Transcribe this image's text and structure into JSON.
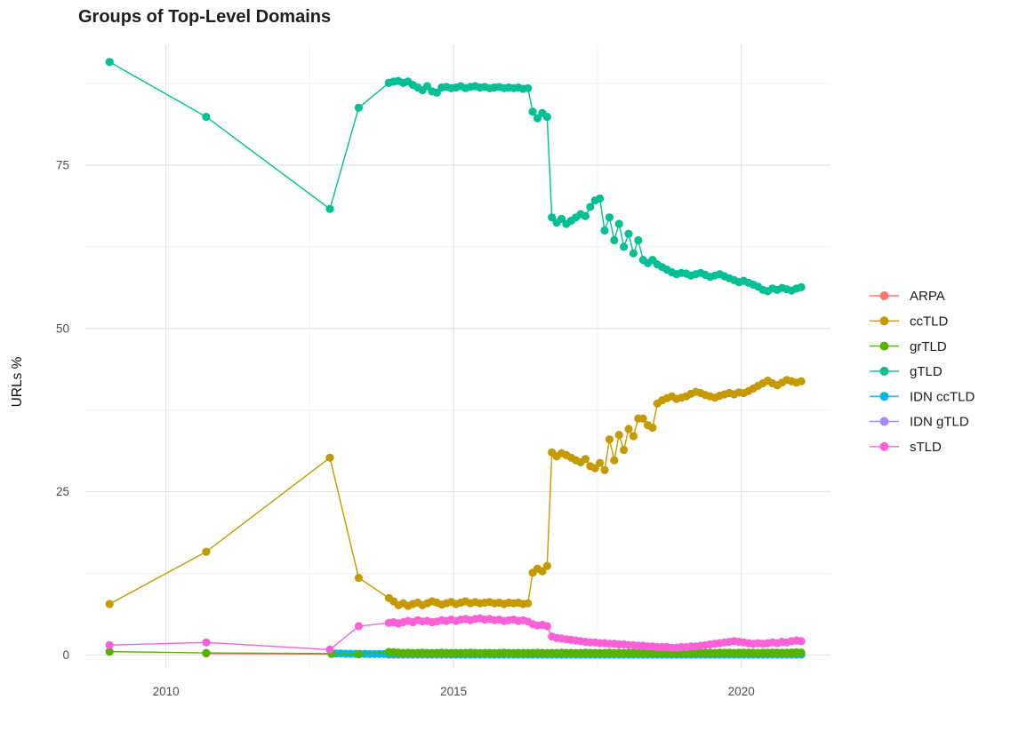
{
  "page": {
    "background": "#FFFFFF"
  },
  "chart_data": {
    "type": "line",
    "title": "Groups of Top-Level Domains",
    "xlabel": "",
    "ylabel": "URLs %",
    "xlim": [
      2008.6,
      2021.55
    ],
    "ylim": [
      -2,
      93.5
    ],
    "x_ticks": [
      {
        "v": 2010,
        "label": "2010"
      },
      {
        "v": 2015,
        "label": "2015"
      },
      {
        "v": 2020,
        "label": "2020"
      }
    ],
    "x_minor": [
      2012.5,
      2017.5
    ],
    "y_ticks": [
      {
        "v": 0,
        "label": "0"
      },
      {
        "v": 25,
        "label": "25"
      },
      {
        "v": 50,
        "label": "50"
      },
      {
        "v": 75,
        "label": "75"
      }
    ],
    "y_minor": [
      12.5,
      37.5,
      62.5,
      87.5
    ],
    "grid": {
      "major_color": "#E3E3E3",
      "minor_color": "#F0F0F0",
      "on": true
    },
    "legend": {
      "position": "right"
    },
    "axis_text_color": "#4D4D4D",
    "series": [
      {
        "name": "ARPA",
        "color": "#F8766D",
        "z": 0,
        "sparse_x": [
          2010.7,
          2012.88,
          2013.35
        ],
        "sparse_y": [
          0.2,
          0.12,
          0.08
        ],
        "dense": {
          "x0": 2013.875,
          "dx": 0.083333,
          "n": 87,
          "v": 0.04
        }
      },
      {
        "name": "ccTLD",
        "color": "#C49A00",
        "z": 4,
        "sparse_x": [
          2009.02,
          2010.7,
          2012.85,
          2013.35
        ],
        "sparse_y": [
          7.8,
          15.8,
          30.2,
          11.8
        ],
        "dense": {
          "x0": 2013.875,
          "dx": 0.083333,
          "y": [
            8.7,
            8.2,
            7.6,
            7.9,
            7.5,
            7.8,
            8.0,
            7.6,
            7.9,
            8.2,
            8.0,
            7.7,
            7.9,
            8.1,
            7.8,
            8.0,
            8.2,
            7.9,
            8.1,
            7.9,
            8.0,
            8.1,
            7.9,
            8.0,
            7.8,
            8.0,
            7.9,
            8.0,
            7.8,
            7.9,
            12.6,
            13.2,
            12.8,
            13.6,
            31.0,
            30.4,
            30.9,
            30.6,
            30.2,
            29.8,
            29.5,
            30.0,
            28.9,
            28.6,
            29.4,
            28.3,
            33.0,
            29.8,
            33.7,
            31.4,
            34.6,
            33.5,
            36.2,
            36.2,
            35.2,
            34.8,
            38.5,
            39.0,
            39.3,
            39.6,
            39.2,
            39.4,
            39.6,
            40.0,
            40.3,
            40.1,
            39.8,
            39.6,
            39.4,
            39.7,
            39.9,
            40.1,
            39.9,
            40.2,
            40.1,
            40.4,
            40.8,
            41.2,
            41.6,
            42.0,
            41.6,
            41.3,
            41.7,
            42.1,
            41.9,
            41.7,
            41.9
          ]
        }
      },
      {
        "name": "grTLD",
        "color": "#53B400",
        "z": 3,
        "sparse_x": [
          2009.02,
          2010.7,
          2012.88,
          2013.35
        ],
        "sparse_y": [
          0.5,
          0.3,
          0.2,
          0.12
        ],
        "dense": {
          "x0": 2013.875,
          "dx": 0.083333,
          "y": [
            0.45,
            0.4,
            0.35,
            0.3,
            0.32,
            0.28,
            0.3,
            0.33,
            0.3,
            0.28,
            0.3,
            0.32,
            0.3,
            0.28,
            0.3,
            0.28,
            0.3,
            0.32,
            0.3,
            0.28,
            0.3,
            0.3,
            0.28,
            0.3,
            0.32,
            0.3,
            0.28,
            0.3,
            0.3,
            0.28,
            0.3,
            0.32,
            0.3,
            0.28,
            0.3,
            0.3,
            0.32,
            0.3,
            0.3,
            0.28,
            0.3,
            0.32,
            0.3,
            0.3,
            0.28,
            0.3,
            0.32,
            0.3,
            0.3,
            0.28,
            0.3,
            0.32,
            0.3,
            0.28,
            0.3,
            0.3,
            0.32,
            0.3,
            0.28,
            0.3,
            0.3,
            0.32,
            0.3,
            0.3,
            0.32,
            0.34,
            0.3,
            0.32,
            0.3,
            0.32,
            0.34,
            0.32,
            0.3,
            0.32,
            0.32,
            0.34,
            0.32,
            0.3,
            0.32,
            0.34,
            0.36,
            0.34,
            0.32,
            0.34,
            0.36,
            0.38,
            0.35
          ]
        }
      },
      {
        "name": "gTLD",
        "color": "#00C094",
        "z": 5,
        "sparse_x": [
          2009.02,
          2010.7,
          2012.85,
          2013.35
        ],
        "sparse_y": [
          90.8,
          82.4,
          68.3,
          83.8
        ],
        "dense": {
          "x0": 2013.875,
          "dx": 0.083333,
          "y": [
            87.6,
            87.8,
            87.9,
            87.6,
            87.8,
            87.3,
            86.9,
            86.5,
            87.1,
            86.3,
            86.1,
            86.9,
            87.0,
            86.8,
            86.9,
            87.1,
            86.8,
            87.0,
            87.1,
            86.9,
            87.0,
            86.8,
            86.9,
            87.0,
            86.8,
            86.9,
            86.8,
            86.9,
            86.7,
            86.8,
            83.2,
            82.2,
            83.0,
            82.4,
            67.0,
            66.2,
            66.8,
            66.0,
            66.5,
            67.0,
            67.5,
            67.2,
            68.6,
            69.6,
            69.9,
            65.0,
            67.0,
            63.5,
            66.0,
            62.5,
            64.5,
            61.5,
            63.5,
            60.5,
            60.0,
            60.5,
            59.8,
            59.4,
            59.0,
            58.6,
            58.3,
            58.5,
            58.4,
            58.1,
            58.3,
            58.5,
            58.2,
            57.9,
            58.1,
            58.3,
            58.0,
            57.7,
            57.4,
            57.1,
            57.3,
            57.0,
            56.7,
            56.4,
            55.9,
            55.7,
            56.1,
            55.9,
            56.2,
            56.0,
            55.8,
            56.1,
            56.3
          ]
        }
      },
      {
        "name": "IDN ccTLD",
        "color": "#00B6EB",
        "z": 2,
        "sparse_x": [],
        "sparse_y": [],
        "dense": {
          "x0": 2012.875,
          "dx": 0.083333,
          "y": [
            0.25,
            0.22,
            0.2,
            0.18,
            0.17,
            0.16,
            0.15,
            0.15,
            0.14,
            0.14,
            0.13,
            0.13,
            0.12,
            0.12,
            0.12,
            0.12,
            0.12,
            0.12,
            0.12,
            0.12,
            0.12,
            0.12,
            0.12,
            0.12,
            0.12,
            0.12,
            0.1,
            0.1,
            0.1,
            0.1,
            0.1,
            0.1,
            0.1,
            0.1,
            0.1,
            0.1,
            0.1,
            0.1,
            0.1,
            0.1,
            0.1,
            0.1,
            0.1,
            0.1,
            0.1,
            0.1,
            0.1,
            0.1,
            0.1,
            0.1,
            0.1,
            0.1,
            0.1,
            0.1,
            0.1,
            0.1,
            0.1,
            0.1,
            0.1,
            0.1,
            0.1,
            0.1,
            0.1,
            0.1,
            0.1,
            0.1,
            0.1,
            0.1,
            0.1,
            0.1,
            0.1,
            0.1,
            0.1,
            0.1,
            0.1,
            0.1,
            0.1,
            0.1,
            0.1,
            0.1,
            0.1,
            0.1,
            0.1,
            0.1,
            0.1,
            0.1,
            0.1,
            0.1,
            0.1,
            0.1,
            0.1,
            0.1,
            0.12,
            0.12,
            0.12,
            0.12,
            0.12,
            0.12,
            0.12
          ]
        }
      },
      {
        "name": "IDN gTLD",
        "color": "#A58AFF",
        "z": 1,
        "sparse_x": [],
        "sparse_y": [],
        "dense": {
          "x0": 2016.542,
          "dx": 0.083333,
          "n": 55,
          "v": 0.06
        }
      },
      {
        "name": "sTLD",
        "color": "#FB61D7",
        "z": 6,
        "sparse_x": [
          2009.02,
          2010.7,
          2012.85,
          2013.35
        ],
        "sparse_y": [
          1.5,
          1.9,
          0.8,
          4.4
        ],
        "dense": {
          "x0": 2013.875,
          "dx": 0.083333,
          "y": [
            4.9,
            5.0,
            4.8,
            5.0,
            5.2,
            5.0,
            5.3,
            5.1,
            5.2,
            5.0,
            5.1,
            5.3,
            5.2,
            5.4,
            5.2,
            5.4,
            5.5,
            5.3,
            5.5,
            5.6,
            5.4,
            5.5,
            5.3,
            5.4,
            5.2,
            5.3,
            5.4,
            5.2,
            5.3,
            5.1,
            4.7,
            4.5,
            4.6,
            4.4,
            2.8,
            2.6,
            2.5,
            2.4,
            2.3,
            2.2,
            2.1,
            2.0,
            1.9,
            1.9,
            1.8,
            1.8,
            1.7,
            1.7,
            1.6,
            1.6,
            1.5,
            1.5,
            1.4,
            1.4,
            1.3,
            1.3,
            1.2,
            1.2,
            1.2,
            1.1,
            1.1,
            1.2,
            1.2,
            1.3,
            1.3,
            1.4,
            1.5,
            1.6,
            1.7,
            1.8,
            1.9,
            2.0,
            2.1,
            2.0,
            1.9,
            1.8,
            1.7,
            1.8,
            1.7,
            1.8,
            1.9,
            1.8,
            2.0,
            1.9,
            2.1,
            2.2,
            2.1
          ]
        }
      }
    ]
  }
}
